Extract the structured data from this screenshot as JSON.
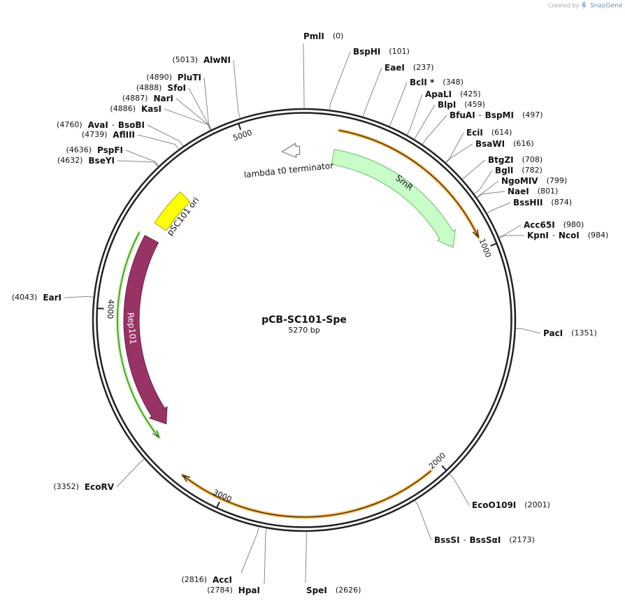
{
  "header": {
    "created_by": "Created by",
    "brand": "SnapGene"
  },
  "map": {
    "name": "pCB-SC101-Spe",
    "size": {
      "value": 5270,
      "label": "5270 bp"
    },
    "ticks": [
      1000,
      2000,
      3000,
      4000,
      5000
    ],
    "name_separator": "-",
    "features": [
      {
        "label": "SmR"
      },
      {
        "label": "lambda t0 terminator"
      },
      {
        "label": "pSC101 ori"
      },
      {
        "label": "Rep101"
      }
    ],
    "sites": [
      {
        "names": [
          "PmlI"
        ],
        "position": {
          "value": 0,
          "label": "(0)"
        }
      },
      {
        "names": [
          "BspHI"
        ],
        "position": {
          "value": 101,
          "label": "(101)"
        }
      },
      {
        "names": [
          "EaeI"
        ],
        "position": {
          "value": 237,
          "label": "(237)"
        }
      },
      {
        "names": [
          "BclI *"
        ],
        "position": {
          "value": 348,
          "label": "(348)"
        }
      },
      {
        "names": [
          "ApaLI"
        ],
        "position": {
          "value": 425,
          "label": "(425)"
        }
      },
      {
        "names": [
          "BlpI"
        ],
        "position": {
          "value": 459,
          "label": "(459)"
        }
      },
      {
        "names": [
          "BfuAI",
          "BspMI"
        ],
        "position": {
          "value": 497,
          "label": "(497)"
        }
      },
      {
        "names": [
          "EciI"
        ],
        "position": {
          "value": 614,
          "label": "(614)"
        }
      },
      {
        "names": [
          "BsaWI"
        ],
        "position": {
          "value": 616,
          "label": "(616)"
        }
      },
      {
        "names": [
          "BtgZI"
        ],
        "position": {
          "value": 708,
          "label": "(708)"
        }
      },
      {
        "names": [
          "BglI"
        ],
        "position": {
          "value": 782,
          "label": "(782)"
        }
      },
      {
        "names": [
          "NgoMIV"
        ],
        "position": {
          "value": 799,
          "label": "(799)"
        }
      },
      {
        "names": [
          "NaeI"
        ],
        "position": {
          "value": 801,
          "label": "(801)"
        }
      },
      {
        "names": [
          "BssHII"
        ],
        "position": {
          "value": 874,
          "label": "(874)"
        }
      },
      {
        "names": [
          "Acc65I"
        ],
        "position": {
          "value": 980,
          "label": "(980)"
        }
      },
      {
        "names": [
          "KpnI",
          "NcoI"
        ],
        "position": {
          "value": 984,
          "label": "(984)"
        }
      },
      {
        "names": [
          "PacI"
        ],
        "position": {
          "value": 1351,
          "label": "(1351)"
        }
      },
      {
        "names": [
          "EcoO109I"
        ],
        "position": {
          "value": 2001,
          "label": "(2001)"
        }
      },
      {
        "names": [
          "BssSI",
          "BssSαI"
        ],
        "position": {
          "value": 2173,
          "label": "(2173)"
        }
      },
      {
        "names": [
          "SpeI"
        ],
        "position": {
          "value": 2626,
          "label": "(2626)"
        }
      },
      {
        "names": [
          "AccI"
        ],
        "position": {
          "value": 2816,
          "label": "(2816)"
        }
      },
      {
        "names": [
          "HpaI"
        ],
        "position": {
          "value": 2784,
          "label": "(2784)"
        }
      },
      {
        "names": [
          "EcoRV"
        ],
        "position": {
          "value": 3352,
          "label": "(3352)"
        }
      },
      {
        "names": [
          "EarI"
        ],
        "position": {
          "value": 4043,
          "label": "(4043)"
        }
      },
      {
        "names": [
          "BseYI"
        ],
        "position": {
          "value": 4632,
          "label": "(4632)"
        }
      },
      {
        "names": [
          "PspFI"
        ],
        "position": {
          "value": 4636,
          "label": "(4636)"
        }
      },
      {
        "names": [
          "AflIII"
        ],
        "position": {
          "value": 4739,
          "label": "(4739)"
        }
      },
      {
        "names": [
          "AvaI",
          "BsoBI"
        ],
        "position": {
          "value": 4760,
          "label": "(4760)"
        }
      },
      {
        "names": [
          "KasI"
        ],
        "position": {
          "value": 4886,
          "label": "(4886)"
        }
      },
      {
        "names": [
          "NarI"
        ],
        "position": {
          "value": 4887,
          "label": "(4887)"
        }
      },
      {
        "names": [
          "SfoI"
        ],
        "position": {
          "value": 4888,
          "label": "(4888)"
        }
      },
      {
        "names": [
          "PluTI"
        ],
        "position": {
          "value": 4890,
          "label": "(4890)"
        }
      },
      {
        "names": [
          "AlwNI"
        ],
        "position": {
          "value": 5013,
          "label": "(5013)"
        }
      }
    ]
  }
}
